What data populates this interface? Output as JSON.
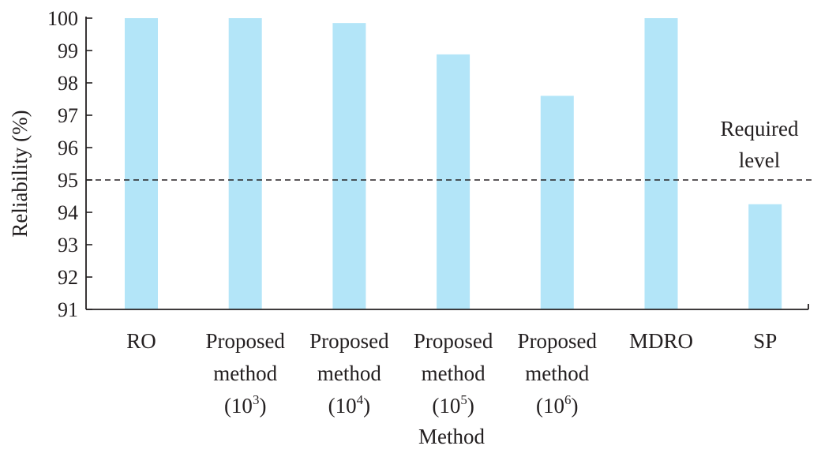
{
  "chart_data": {
    "type": "bar",
    "categories": [
      [
        "RO"
      ],
      [
        "Proposed",
        "method",
        "(10^3)"
      ],
      [
        "Proposed",
        "method",
        "(10^4)"
      ],
      [
        "Proposed",
        "method",
        "(10^5)"
      ],
      [
        "Proposed",
        "method",
        "(10^6)"
      ],
      [
        "MDRO"
      ],
      [
        "SP"
      ]
    ],
    "values": [
      100,
      100,
      99.85,
      98.88,
      97.6,
      100,
      94.25
    ],
    "xlabel": "Method",
    "ylabel": "Reliability (%)",
    "ylim": [
      91,
      100
    ],
    "yticks": [
      91,
      92,
      93,
      94,
      95,
      96,
      97,
      98,
      99,
      100
    ],
    "bar_color": "#b3e5f8",
    "reference_line": {
      "value": 95,
      "style": "dashed",
      "label": [
        "Required",
        "level"
      ]
    },
    "grid": false,
    "legend": "none"
  }
}
